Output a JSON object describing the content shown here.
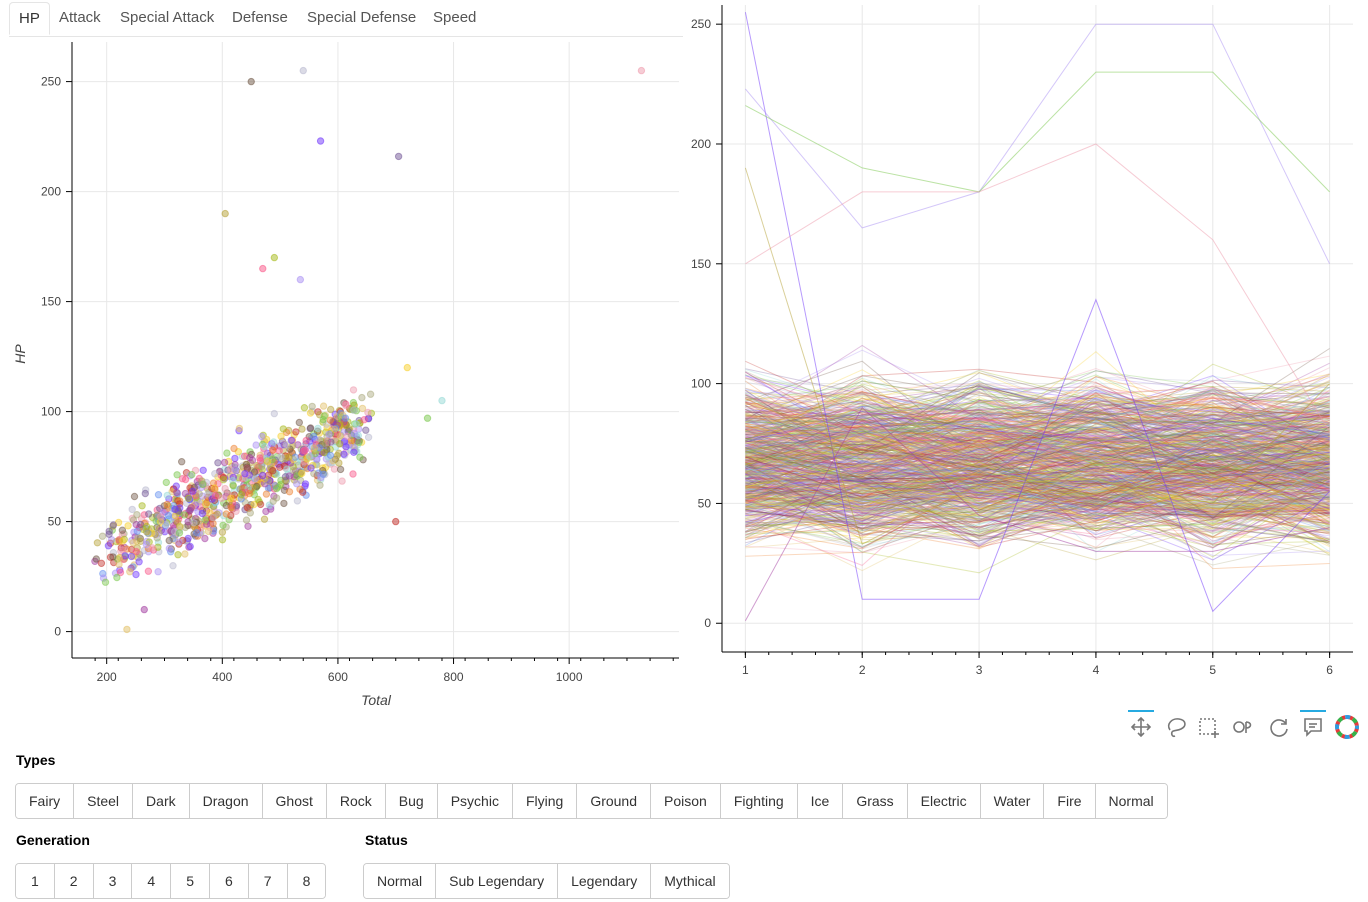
{
  "tabs": [
    "HP",
    "Attack",
    "Special Attack",
    "Defense",
    "Special Defense",
    "Speed"
  ],
  "active_tab": "HP",
  "sections": {
    "types": "Types",
    "generation": "Generation",
    "status": "Status"
  },
  "types": [
    "Fairy",
    "Steel",
    "Dark",
    "Dragon",
    "Ghost",
    "Rock",
    "Bug",
    "Psychic",
    "Flying",
    "Ground",
    "Poison",
    "Fighting",
    "Ice",
    "Grass",
    "Electric",
    "Water",
    "Fire",
    "Normal"
  ],
  "generations": [
    "1",
    "2",
    "3",
    "4",
    "5",
    "6",
    "7",
    "8"
  ],
  "statuses": [
    "Normal",
    "Sub Legendary",
    "Legendary",
    "Mythical"
  ],
  "toolbar": [
    "pan-icon",
    "lasso-select-icon",
    "box-zoom-icon",
    "wheel-zoom-icon",
    "reset-icon",
    "hover-icon",
    "bokeh-logo-icon"
  ],
  "toolbar_active": [
    "pan-icon",
    "hover-icon"
  ],
  "palette": [
    "#ee99ac",
    "#b7b7ce",
    "#705746",
    "#6f35fc",
    "#735797",
    "#b6a136",
    "#a6b91a",
    "#f95587",
    "#a98ff3",
    "#e2bf65",
    "#a33ea1",
    "#c22e28",
    "#96d9d6",
    "#7ac74c",
    "#f7d02c",
    "#6390f0",
    "#ee8130",
    "#a8a77a"
  ],
  "chart_data": [
    {
      "type": "scatter",
      "xlabel": "Total",
      "ylabel": "HP",
      "xlim": [
        140,
        1190
      ],
      "ylim": [
        -12,
        268
      ],
      "xticks": [
        200,
        400,
        600,
        800,
        1000
      ],
      "yticks": [
        0,
        50,
        100,
        150,
        200,
        250
      ],
      "grid": true,
      "notable_points": [
        {
          "x": 1125,
          "y": 255
        },
        {
          "x": 540,
          "y": 255
        },
        {
          "x": 450,
          "y": 250
        },
        {
          "x": 570,
          "y": 223
        },
        {
          "x": 705,
          "y": 216
        },
        {
          "x": 405,
          "y": 190
        },
        {
          "x": 490,
          "y": 170
        },
        {
          "x": 470,
          "y": 165
        },
        {
          "x": 535,
          "y": 160
        },
        {
          "x": 235,
          "y": 1
        },
        {
          "x": 265,
          "y": 10
        },
        {
          "x": 700,
          "y": 50
        },
        {
          "x": 780,
          "y": 105
        },
        {
          "x": 755,
          "y": 97
        },
        {
          "x": 720,
          "y": 120
        }
      ]
    },
    {
      "type": "line",
      "description_series": "one line per Pokémon across 6 stats",
      "x": [
        1,
        2,
        3,
        4,
        5,
        6
      ],
      "xlim": [
        0.8,
        6.2
      ],
      "ylim": [
        -12,
        258
      ],
      "xticks": [
        1,
        2,
        3,
        4,
        5,
        6
      ],
      "yticks": [
        0,
        50,
        100,
        150,
        200,
        250
      ],
      "grid": true,
      "highlight_series": [
        {
          "values": [
            255,
            10,
            10,
            135,
            5,
            55
          ]
        },
        {
          "values": [
            223,
            165,
            180,
            250,
            250,
            150
          ]
        },
        {
          "values": [
            216,
            190,
            180,
            230,
            230,
            180
          ]
        },
        {
          "values": [
            150,
            180,
            180,
            200,
            160,
            80
          ]
        },
        {
          "values": [
            190,
            33,
            58,
            60,
            50,
            100
          ]
        },
        {
          "values": [
            1,
            90,
            45,
            30,
            30,
            40
          ]
        }
      ]
    }
  ]
}
